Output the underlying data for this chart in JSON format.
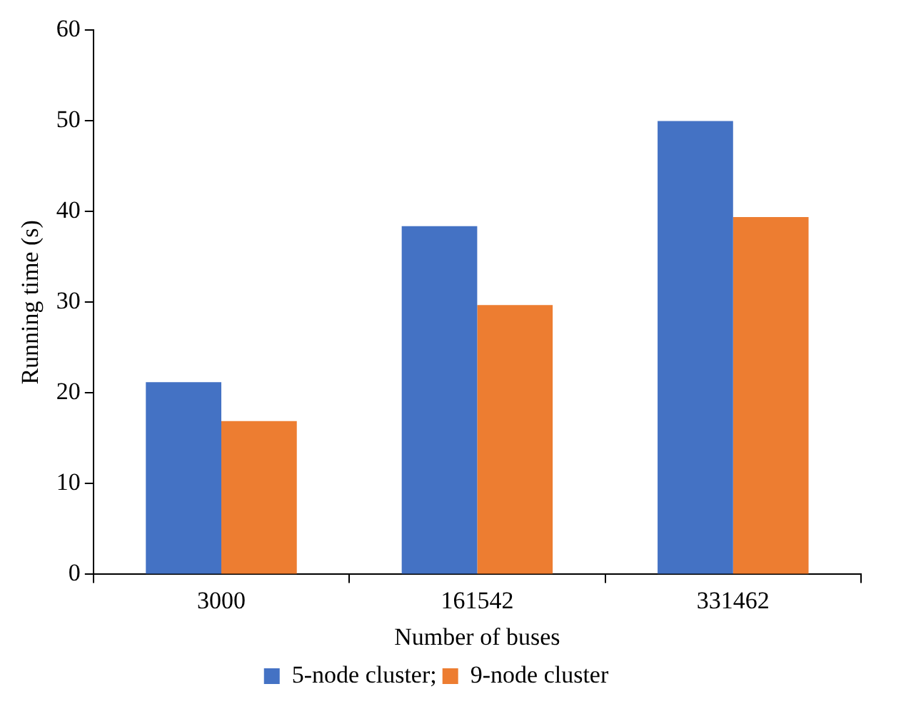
{
  "chart_data": {
    "type": "bar",
    "xlabel": "Number of buses",
    "ylabel": "Running time (s)",
    "categories": [
      "3000",
      "161542",
      "331462"
    ],
    "series": [
      {
        "name": "5-node cluster;",
        "color": "#4472c4",
        "values": [
          21.2,
          38.4,
          50
        ]
      },
      {
        "name": "9-node cluster",
        "color": "#ed7d31",
        "values": [
          16.9,
          29.7,
          39.4
        ]
      }
    ],
    "ylim": [
      0,
      60
    ],
    "yticks": [
      0,
      10,
      20,
      30,
      40,
      50,
      60
    ],
    "grid": false,
    "legend": "bottom"
  }
}
